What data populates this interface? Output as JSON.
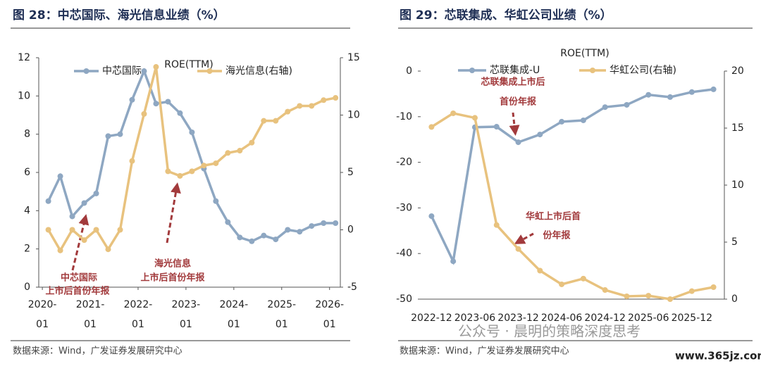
{
  "chart_data": [
    {
      "type": "line",
      "figure_title": "图 28：中芯国际、海光信息业绩（%）",
      "title": "ROE(TTM)",
      "categories": [
        null,
        null,
        null,
        null,
        null,
        null,
        null,
        null,
        null,
        null,
        null,
        null,
        null,
        null,
        null,
        null,
        null,
        null,
        null,
        null,
        null,
        null,
        null,
        null,
        null
      ],
      "xlim": [
        -0.8,
        24.4
      ],
      "xticks": [
        {
          "value": -0.5,
          "label": "2020-\n01"
        },
        {
          "value": 3.5,
          "label": "2021-\n01"
        },
        {
          "value": 7.5,
          "label": "2022-\n01"
        },
        {
          "value": 11.5,
          "label": "2023-\n01"
        },
        {
          "value": 15.5,
          "label": "2024-\n01"
        },
        {
          "value": 19.5,
          "label": "2025-\n01"
        },
        {
          "value": 23.5,
          "label": "2026-\n01"
        }
      ],
      "ylim": [
        0,
        12
      ],
      "yticks": [
        0,
        2,
        4,
        6,
        8,
        10,
        12
      ],
      "y2lim": [
        -5,
        15
      ],
      "y2ticks": [
        -5,
        0,
        5,
        10,
        15
      ],
      "series": [
        {
          "name": "中芯国际",
          "color": "#8ea7c2",
          "values": [
            4.5,
            5.8,
            3.7,
            4.4,
            4.9,
            7.9,
            8.0,
            9.8,
            11.3,
            9.6,
            9.7,
            9.1,
            8.1,
            6.2,
            4.5,
            3.4,
            2.6,
            2.4,
            2.7,
            2.5,
            3.0,
            2.9,
            3.2,
            3.35,
            3.35
          ]
        },
        {
          "name": "海光信息(右轴)",
          "color": "#e8c27e",
          "axis": "y2",
          "values": [
            0,
            -1.8,
            0,
            -0.9,
            0,
            -1.7,
            0,
            6.0,
            10.1,
            14.2,
            5.1,
            4.7,
            5.1,
            5.6,
            5.8,
            6.7,
            6.9,
            7.6,
            9.5,
            9.5,
            10.3,
            10.8,
            10.8,
            11.3,
            11.5
          ]
        }
      ],
      "annotations": [
        "中芯国际",
        "上市后首份年报",
        "海光信息",
        "上市后首份年报"
      ],
      "source": "数据来源：Wind，广发证券发展研究中心"
    },
    {
      "type": "line",
      "figure_title": "图 29：芯联集成、华虹公司业绩（%）",
      "title": "ROE(TTM)",
      "categories": [
        "2022-12",
        null,
        "2023-06",
        null,
        "2023-12",
        null,
        "2024-06",
        null,
        "2024-12",
        null,
        "2025-06",
        null,
        "2025-12",
        null
      ],
      "ylim": [
        -50,
        0
      ],
      "yticks": [
        -50,
        -40,
        -30,
        -20,
        -10,
        0
      ],
      "y2lim": [
        0,
        20
      ],
      "y2ticks": [
        0,
        5,
        10,
        15,
        20
      ],
      "series": [
        {
          "name": "芯联集成-U",
          "color": "#8ea7c2",
          "values": [
            -31.8,
            -41.7,
            -12.3,
            -12.2,
            -15.6,
            -13.9,
            -11.1,
            -10.8,
            -7.9,
            -7.4,
            -5.2,
            -5.7,
            -4.6,
            -4.0
          ]
        },
        {
          "name": "华虹公司(右轴)",
          "color": "#e8c27e",
          "axis": "y2",
          "values": [
            15.1,
            16.3,
            15.9,
            6.5,
            4.4,
            2.5,
            1.3,
            1.8,
            0.8,
            0.25,
            0.3,
            0.0,
            0.7,
            1.05
          ]
        }
      ],
      "annotations": [
        "芯联集成上市后",
        "首份年报",
        "华虹上市后首",
        "份年报"
      ],
      "source": "数据来源：Wind，广发证券发展研究中心"
    }
  ],
  "watermark": [
    "公众号 · 晨明的策略深度思考",
    "www.365jz.com"
  ]
}
